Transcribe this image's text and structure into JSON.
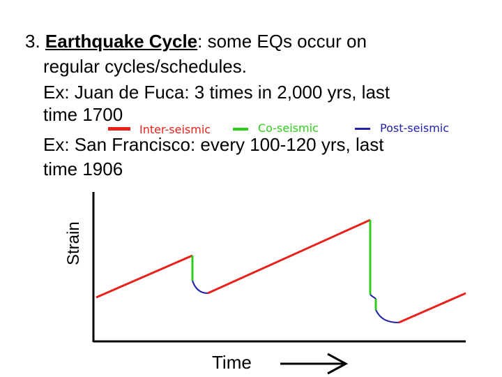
{
  "slide": {
    "item_number": "3.",
    "term": "Earthquake Cycle",
    "line1_rest": ": some EQs occur on",
    "line2": "regular cycles/schedules.",
    "line3": "Ex: Juan de Fuca: 3 times in 2,000 yrs, last",
    "line4": "time 1700",
    "line5": "Ex: San Francisco: every 100-120 yrs, last",
    "line6": "time 1906"
  },
  "diagram": {
    "legend": [
      {
        "label": "Inter-seismic",
        "color": "#e8221a"
      },
      {
        "label": "Co-seismic",
        "color": "#2ecc1a"
      },
      {
        "label": "Post-seismic",
        "color": "#2222aa"
      }
    ],
    "y_axis_label": "Strain",
    "x_axis_label": "Time"
  }
}
